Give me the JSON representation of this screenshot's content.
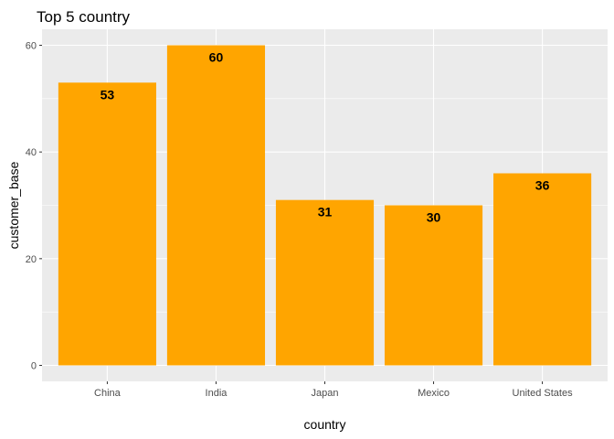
{
  "chart_data": {
    "type": "bar",
    "title": "Top 5 country",
    "xlabel": "country",
    "ylabel": "customer_base",
    "categories": [
      "China",
      "India",
      "Japan",
      "Mexico",
      "United States"
    ],
    "values": [
      53,
      60,
      31,
      30,
      36
    ],
    "data_labels": [
      "53",
      "60",
      "31",
      "30",
      "36"
    ],
    "ylim": [
      -3,
      63
    ],
    "yticks": [
      0,
      20,
      40,
      60
    ],
    "ytick_labels": [
      "0",
      "20",
      "40",
      "60"
    ],
    "bar_color": "#FFA500",
    "panel_background": "#EBEBEB",
    "grid_color": "#FFFFFF",
    "grid": true,
    "legend": "none"
  }
}
